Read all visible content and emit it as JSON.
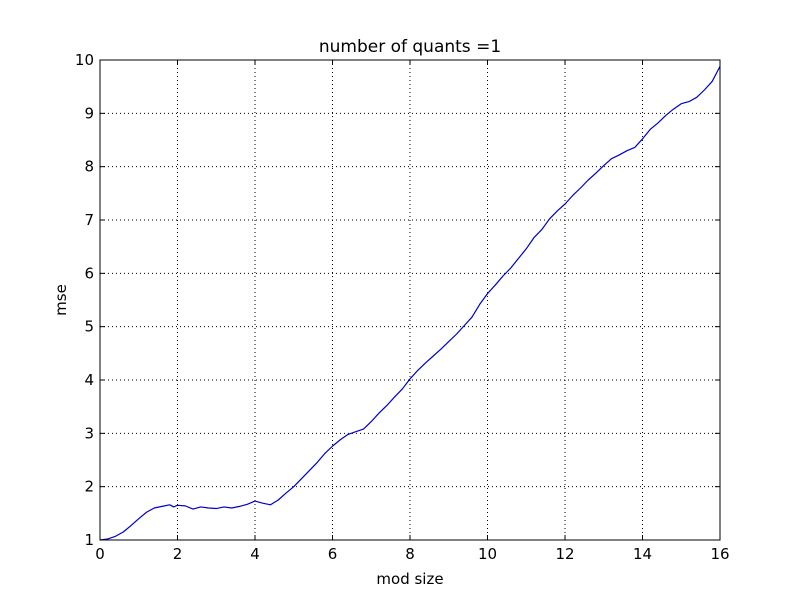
{
  "chart_data": {
    "type": "line",
    "title": "number of quants =1",
    "xlabel": "mod size",
    "ylabel": "mse",
    "xlim": [
      0,
      16
    ],
    "ylim": [
      1,
      10
    ],
    "xticks": [
      0,
      2,
      4,
      6,
      8,
      10,
      12,
      14,
      16
    ],
    "yticks": [
      1,
      2,
      3,
      4,
      5,
      6,
      7,
      8,
      9,
      10
    ],
    "grid": true,
    "colors": {
      "line": "#0000cc",
      "axes": "#000000",
      "grid": "#000000"
    },
    "series": [
      {
        "values": [
          [
            0.0,
            1.0
          ],
          [
            0.2,
            1.02
          ],
          [
            0.4,
            1.07
          ],
          [
            0.6,
            1.15
          ],
          [
            0.8,
            1.27
          ],
          [
            1.0,
            1.4
          ],
          [
            1.2,
            1.52
          ],
          [
            1.4,
            1.6
          ],
          [
            1.6,
            1.63
          ],
          [
            1.8,
            1.66
          ],
          [
            1.9,
            1.62
          ],
          [
            2.0,
            1.65
          ],
          [
            2.2,
            1.64
          ],
          [
            2.4,
            1.58
          ],
          [
            2.6,
            1.62
          ],
          [
            2.8,
            1.6
          ],
          [
            3.0,
            1.59
          ],
          [
            3.2,
            1.62
          ],
          [
            3.4,
            1.6
          ],
          [
            3.6,
            1.63
          ],
          [
            3.8,
            1.67
          ],
          [
            4.0,
            1.73
          ],
          [
            4.2,
            1.69
          ],
          [
            4.4,
            1.66
          ],
          [
            4.6,
            1.75
          ],
          [
            4.8,
            1.88
          ],
          [
            5.0,
            2.0
          ],
          [
            5.2,
            2.15
          ],
          [
            5.4,
            2.3
          ],
          [
            5.6,
            2.45
          ],
          [
            5.8,
            2.62
          ],
          [
            6.0,
            2.76
          ],
          [
            6.2,
            2.88
          ],
          [
            6.4,
            2.98
          ],
          [
            6.6,
            3.03
          ],
          [
            6.8,
            3.08
          ],
          [
            7.0,
            3.22
          ],
          [
            7.2,
            3.38
          ],
          [
            7.4,
            3.52
          ],
          [
            7.6,
            3.68
          ],
          [
            7.8,
            3.83
          ],
          [
            8.0,
            4.02
          ],
          [
            8.2,
            4.18
          ],
          [
            8.4,
            4.32
          ],
          [
            8.6,
            4.45
          ],
          [
            8.8,
            4.58
          ],
          [
            9.0,
            4.72
          ],
          [
            9.2,
            4.86
          ],
          [
            9.4,
            5.02
          ],
          [
            9.6,
            5.18
          ],
          [
            9.8,
            5.42
          ],
          [
            10.0,
            5.62
          ],
          [
            10.2,
            5.78
          ],
          [
            10.4,
            5.95
          ],
          [
            10.6,
            6.1
          ],
          [
            10.8,
            6.28
          ],
          [
            11.0,
            6.46
          ],
          [
            11.2,
            6.67
          ],
          [
            11.4,
            6.82
          ],
          [
            11.6,
            7.02
          ],
          [
            11.8,
            7.17
          ],
          [
            12.0,
            7.3
          ],
          [
            12.2,
            7.46
          ],
          [
            12.4,
            7.6
          ],
          [
            12.6,
            7.75
          ],
          [
            12.8,
            7.88
          ],
          [
            13.0,
            8.02
          ],
          [
            13.2,
            8.15
          ],
          [
            13.4,
            8.22
          ],
          [
            13.6,
            8.3
          ],
          [
            13.8,
            8.36
          ],
          [
            14.0,
            8.52
          ],
          [
            14.2,
            8.7
          ],
          [
            14.4,
            8.82
          ],
          [
            14.6,
            8.96
          ],
          [
            14.8,
            9.08
          ],
          [
            15.0,
            9.18
          ],
          [
            15.2,
            9.22
          ],
          [
            15.4,
            9.3
          ],
          [
            15.6,
            9.44
          ],
          [
            15.8,
            9.6
          ],
          [
            16.0,
            9.88
          ]
        ]
      }
    ]
  }
}
